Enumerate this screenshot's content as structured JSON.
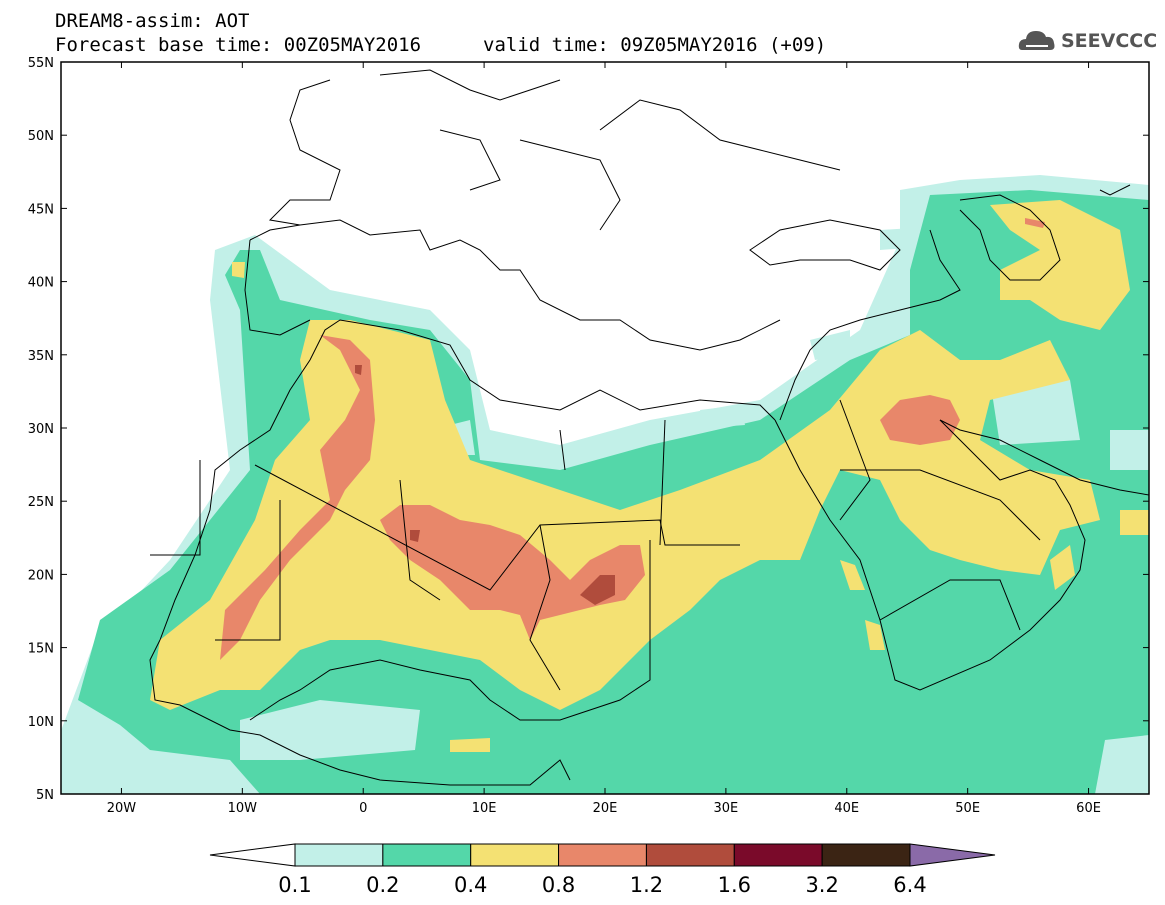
{
  "header": {
    "line1": "DREAM8-assim: AOT",
    "line2": "Forecast base time: 00Z05MAY2016",
    "valid": "valid time: 09Z05MAY2016 (+09)"
  },
  "logo": {
    "text": "SEEVCCC",
    "icon": "cloud-icon"
  },
  "map": {
    "lat_labels": [
      "55N",
      "50N",
      "45N",
      "40N",
      "35N",
      "30N",
      "25N",
      "20N",
      "15N",
      "10N",
      "5N"
    ],
    "lon_labels": [
      "20W",
      "10W",
      "0",
      "10E",
      "20E",
      "30E",
      "40E",
      "50E",
      "60E"
    ],
    "lat_range": [
      5,
      55
    ],
    "lon_range": [
      -25,
      65
    ]
  },
  "colorbar": {
    "labels": [
      "0.1",
      "0.2",
      "0.4",
      "0.8",
      "1.2",
      "1.6",
      "3.2",
      "6.4"
    ],
    "colors": [
      "#ffffff",
      "#c2f0e8",
      "#54d7a9",
      "#f4e173",
      "#e8876a",
      "#b04c3c",
      "#7a0a2a",
      "#3b2414",
      "#8a6aa8"
    ]
  }
}
